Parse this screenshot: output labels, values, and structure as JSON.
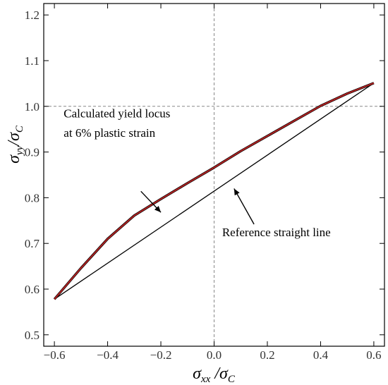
{
  "chart_data": {
    "type": "line",
    "title": "",
    "xlabel": {
      "base": "σ",
      "sub1": "xx",
      "slash": " /",
      "base2": "σ",
      "sub2": "C"
    },
    "ylabel": {
      "base": "σ",
      "sub1": "yy",
      "slash": "/",
      "base2": "σ",
      "sub2": "C"
    },
    "xlim": [
      -0.64,
      0.64
    ],
    "ylim": [
      0.475,
      1.225
    ],
    "xticks": [
      -0.6,
      -0.4,
      -0.2,
      0.0,
      0.2,
      0.4,
      0.6
    ],
    "xtick_labels": [
      "−0.6",
      "−0.4",
      "−0.2",
      "0.0",
      "0.2",
      "0.4",
      "0.6"
    ],
    "yticks": [
      0.5,
      0.6,
      0.7,
      0.8,
      0.9,
      1.0,
      1.1,
      1.2
    ],
    "ytick_labels": [
      "0.5",
      "0.6",
      "0.7",
      "0.8",
      "0.9",
      "1.0",
      "1.1",
      "1.2"
    ],
    "reference_lines": {
      "x": 0.0,
      "y": 1.0
    },
    "series": [
      {
        "color": "#b22222",
        "x": [
          -0.6,
          -0.5,
          -0.4,
          -0.3,
          -0.2,
          -0.1,
          0.0,
          0.1,
          0.2,
          0.3,
          0.4,
          0.5,
          0.6
        ],
        "y": [
          0.578,
          0.646,
          0.71,
          0.761,
          0.797,
          0.832,
          0.866,
          0.902,
          0.935,
          0.968,
          1.001,
          1.028,
          1.051
        ]
      },
      {
        "color": "#000000",
        "x": [
          -0.6,
          0.6
        ],
        "y": [
          0.578,
          1.051
        ]
      }
    ],
    "annotations": [
      {
        "lines": [
          "Calculated yield locus",
          "at 6% plastic strain"
        ],
        "text_x": -0.565,
        "text_y": [
          0.976,
          0.933
        ],
        "arrow_from": [
          -0.275,
          0.814
        ],
        "arrow_to": [
          -0.2,
          0.768
        ]
      },
      {
        "lines": [
          "Reference straight line"
        ],
        "text_x": 0.03,
        "text_y": [
          0.716
        ],
        "arrow_from": [
          0.15,
          0.742
        ],
        "arrow_to": [
          0.075,
          0.82
        ]
      }
    ]
  }
}
